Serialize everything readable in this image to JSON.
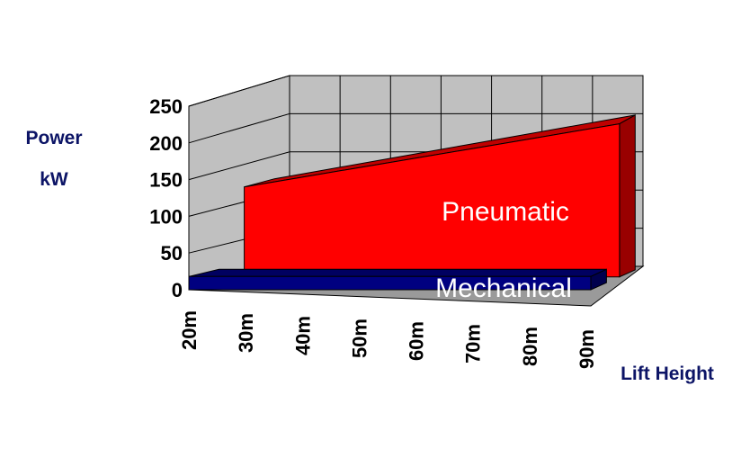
{
  "chart_data": {
    "type": "area",
    "title": "",
    "xlabel": "Lift Height",
    "ylabel_line1": "Power",
    "ylabel_line2": "kW",
    "categories": [
      "20m",
      "30m",
      "40m",
      "50m",
      "60m",
      "70m",
      "80m",
      "90m"
    ],
    "ylim": [
      0,
      250
    ],
    "yticks": [
      0,
      50,
      100,
      150,
      200,
      250
    ],
    "grid": true,
    "series": [
      {
        "name": "Pneumatic",
        "values": [
          120,
          132,
          144,
          156,
          168,
          180,
          192,
          204
        ],
        "color": "#ff0000"
      },
      {
        "name": "Mechanical",
        "values": [
          18,
          18,
          18,
          18,
          18,
          18,
          18,
          18
        ],
        "color": "#000080"
      }
    ]
  }
}
